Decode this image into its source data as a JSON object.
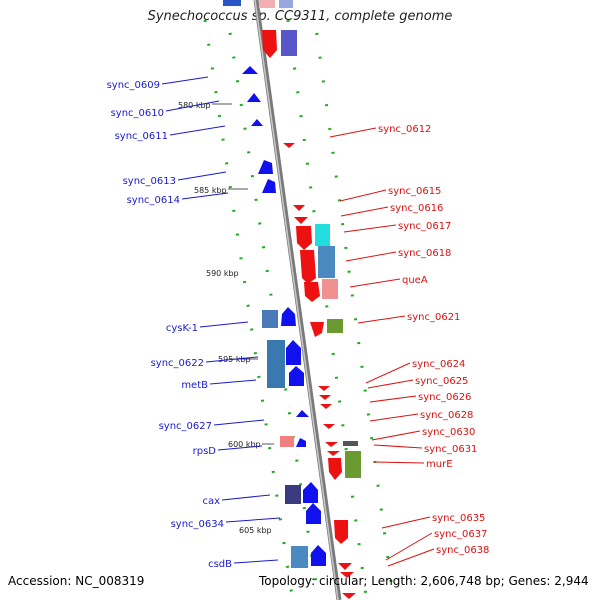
{
  "title": "Synechococcus sp. CC9311, complete genome",
  "footer": {
    "accession": "Accession: NC_008319",
    "summary": "Topology: circular; Length: 2,606,748 bp; Genes: 2,944"
  },
  "colors": {
    "left_label": "#1a1acc",
    "right_label": "#dd1111",
    "backbone": "#8a8a8a",
    "dots": "#22aa22",
    "ruler_text": "#222222"
  },
  "ruler": [
    "580 kbp",
    "585 kbp",
    "590 kbp",
    "595 kbp",
    "600 kbp",
    "605 kbp"
  ],
  "left_labels": [
    "sync_0609",
    "sync_0610",
    "sync_0611",
    "sync_0613",
    "sync_0614",
    "cysK-1",
    "sync_0622",
    "metB",
    "sync_0627",
    "rpsD",
    "cax",
    "sync_0634",
    "csdB"
  ],
  "right_labels": [
    "sync_0612",
    "sync_0615",
    "sync_0616",
    "sync_0617",
    "sync_0618",
    "queA",
    "sync_0621",
    "sync_0624",
    "sync_0625",
    "sync_0626",
    "sync_0628",
    "sync_0630",
    "sync_0631",
    "murE",
    "sync_0635",
    "sync_0637",
    "sync_0638"
  ]
}
